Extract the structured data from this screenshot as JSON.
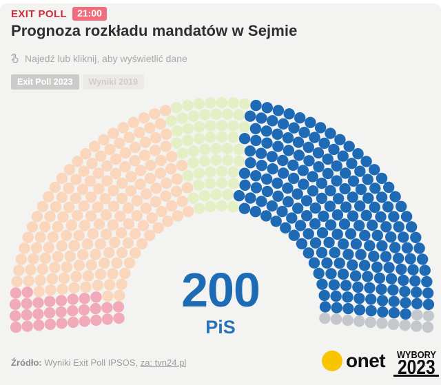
{
  "page": {
    "background": "#f3f3f1"
  },
  "header": {
    "kicker": "EXIT POLL",
    "time_badge": "21:00",
    "title": "Prognoza rozkładu mandatów w Sejmie",
    "hint": "Najedź lub kliknij, aby wyświetlić dane"
  },
  "tabs": {
    "exit_poll_2023": "Exit Poll 2023",
    "wyniki_2019": "Wyniki 2019"
  },
  "chart_data": {
    "type": "parliament-arc",
    "total_seats": 460,
    "center_label": {
      "value": "200",
      "label": "PiS",
      "color": "#1d6bb4"
    },
    "series": [
      {
        "segment": "far-left-pink",
        "seats": 30,
        "color": "#f0aab9"
      },
      {
        "segment": "left-peach",
        "seats": 163,
        "color": "#f9d6bc"
      },
      {
        "segment": "center-light-green",
        "seats": 55,
        "color": "#e5efc6"
      },
      {
        "segment": "right-blue-PiS",
        "seats": 200,
        "color": "#1e6ab4",
        "highlighted": true
      },
      {
        "segment": "far-right-gray",
        "seats": 12,
        "color": "#c4c7cb"
      }
    ],
    "layout": {
      "rows": 10,
      "inner_radius": 150,
      "outer_radius": 300,
      "arc_degrees": 190,
      "center_x": 322,
      "center_y": 449,
      "dot_radius": 8.2
    }
  },
  "footer": {
    "source_label": "Źródło:",
    "source_text": "Wyniki Exit Poll IPSOS,",
    "source_link": "za: tvn24.pl"
  },
  "brands": {
    "onet": "onet",
    "onet_yellow": "#f9c502",
    "wybory_line1": "WYBORY",
    "wybory_line2": "2023"
  }
}
